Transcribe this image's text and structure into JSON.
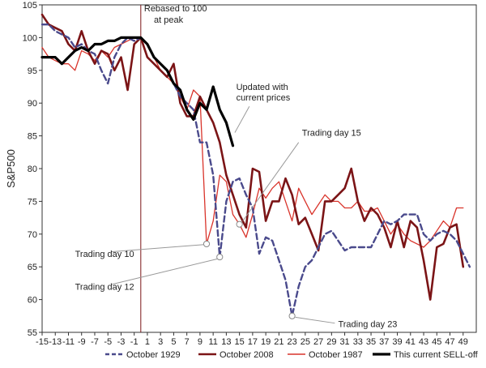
{
  "chart_data": {
    "type": "line",
    "ylabel": "S&P500",
    "xlabel": "",
    "xlim": [
      -15,
      51
    ],
    "ylim": [
      55,
      105
    ],
    "x_ticks": [
      -15,
      -13,
      -11,
      -9,
      -7,
      -5,
      -3,
      -1,
      1,
      3,
      5,
      7,
      9,
      11,
      13,
      15,
      17,
      19,
      21,
      23,
      25,
      27,
      29,
      31,
      33,
      35,
      37,
      39,
      41,
      43,
      45,
      47,
      49
    ],
    "y_ticks": [
      55,
      60,
      65,
      70,
      75,
      80,
      85,
      90,
      95,
      100,
      105
    ],
    "vline_x": 0,
    "series": [
      {
        "name": "October 1929",
        "color": "#4a4a8c",
        "style": "dashed",
        "points": [
          [
            -15,
            102
          ],
          [
            -14,
            102
          ],
          [
            -13,
            101
          ],
          [
            -12,
            100.5
          ],
          [
            -11,
            100
          ],
          [
            -10,
            98.5
          ],
          [
            -9,
            99
          ],
          [
            -8,
            98
          ],
          [
            -7,
            97.5
          ],
          [
            -6,
            95
          ],
          [
            -5,
            93
          ],
          [
            -4,
            97
          ],
          [
            -3,
            99
          ],
          [
            -2,
            100
          ],
          [
            -1,
            99.5
          ],
          [
            0,
            100
          ],
          [
            1,
            99
          ],
          [
            2,
            97
          ],
          [
            3,
            96
          ],
          [
            4,
            95
          ],
          [
            5,
            93
          ],
          [
            6,
            91
          ],
          [
            7,
            90
          ],
          [
            8,
            89
          ],
          [
            9,
            84
          ],
          [
            10,
            84
          ],
          [
            11,
            79
          ],
          [
            12,
            66.5
          ],
          [
            13,
            75
          ],
          [
            14,
            78
          ],
          [
            15,
            78.5
          ],
          [
            16,
            76
          ],
          [
            17,
            74
          ],
          [
            18,
            67
          ],
          [
            19,
            69.5
          ],
          [
            20,
            69
          ],
          [
            21,
            66
          ],
          [
            22,
            63
          ],
          [
            23,
            57.5
          ],
          [
            24,
            62
          ],
          [
            25,
            65
          ],
          [
            26,
            66
          ],
          [
            27,
            68
          ],
          [
            28,
            70
          ],
          [
            29,
            70.5
          ],
          [
            30,
            69
          ],
          [
            31,
            67.5
          ],
          [
            32,
            68
          ],
          [
            33,
            68
          ],
          [
            34,
            68
          ],
          [
            35,
            68
          ],
          [
            36,
            70
          ],
          [
            37,
            72
          ],
          [
            38,
            71.5
          ],
          [
            39,
            72
          ],
          [
            40,
            73
          ],
          [
            41,
            73
          ],
          [
            42,
            73
          ],
          [
            43,
            70
          ],
          [
            44,
            69
          ],
          [
            45,
            70
          ],
          [
            46,
            70.5
          ],
          [
            47,
            70
          ],
          [
            48,
            69
          ],
          [
            49,
            67
          ],
          [
            50,
            65
          ]
        ]
      },
      {
        "name": "October 2008",
        "color": "#7b1416",
        "style": "solid",
        "points": [
          [
            -15,
            103.5
          ],
          [
            -14,
            102
          ],
          [
            -13,
            101.5
          ],
          [
            -12,
            101
          ],
          [
            -11,
            99
          ],
          [
            -10,
            98
          ],
          [
            -9,
            101
          ],
          [
            -8,
            98
          ],
          [
            -7,
            96
          ],
          [
            -6,
            98
          ],
          [
            -5,
            97.5
          ],
          [
            -4,
            95
          ],
          [
            -3,
            97
          ],
          [
            -2,
            92
          ],
          [
            -1,
            99
          ],
          [
            0,
            100
          ],
          [
            1,
            97
          ],
          [
            2,
            96
          ],
          [
            3,
            95
          ],
          [
            4,
            94
          ],
          [
            5,
            96
          ],
          [
            6,
            90
          ],
          [
            7,
            88
          ],
          [
            8,
            88
          ],
          [
            9,
            91
          ],
          [
            10,
            89
          ],
          [
            11,
            87
          ],
          [
            12,
            84
          ],
          [
            13,
            79
          ],
          [
            14,
            76
          ],
          [
            15,
            73
          ],
          [
            16,
            71
          ],
          [
            17,
            80
          ],
          [
            18,
            79.5
          ],
          [
            19,
            72
          ],
          [
            20,
            75
          ],
          [
            21,
            75
          ],
          [
            22,
            78.5
          ],
          [
            23,
            76
          ],
          [
            24,
            71.5
          ],
          [
            25,
            72.5
          ],
          [
            26,
            70
          ],
          [
            27,
            67.5
          ],
          [
            28,
            75
          ],
          [
            29,
            75
          ],
          [
            30,
            76
          ],
          [
            31,
            77
          ],
          [
            32,
            80
          ],
          [
            33,
            75
          ],
          [
            34,
            72
          ],
          [
            35,
            74
          ],
          [
            36,
            73
          ],
          [
            37,
            71
          ],
          [
            38,
            68
          ],
          [
            39,
            72
          ],
          [
            40,
            68
          ],
          [
            41,
            72
          ],
          [
            42,
            71
          ],
          [
            43,
            66
          ],
          [
            44,
            60
          ],
          [
            45,
            68
          ],
          [
            46,
            68.5
          ],
          [
            47,
            71
          ],
          [
            48,
            71.5
          ],
          [
            49,
            65
          ]
        ]
      },
      {
        "name": "October 1987",
        "color": "#d9342b",
        "style": "solid",
        "points": [
          [
            -15,
            98.5
          ],
          [
            -14,
            97
          ],
          [
            -13,
            96.5
          ],
          [
            -12,
            96
          ],
          [
            -11,
            96
          ],
          [
            -10,
            95
          ],
          [
            -9,
            98
          ],
          [
            -8,
            97.5
          ],
          [
            -7,
            96.5
          ],
          [
            -6,
            98
          ],
          [
            -5,
            97
          ],
          [
            -4,
            98.5
          ],
          [
            -3,
            99
          ],
          [
            -2,
            99.5
          ],
          [
            -1,
            100
          ],
          [
            0,
            100
          ],
          [
            1,
            99
          ],
          [
            2,
            97
          ],
          [
            3,
            95
          ],
          [
            4,
            94
          ],
          [
            5,
            93
          ],
          [
            6,
            91
          ],
          [
            7,
            89
          ],
          [
            8,
            92
          ],
          [
            9,
            91
          ],
          [
            10,
            68.5
          ],
          [
            11,
            72
          ],
          [
            12,
            79
          ],
          [
            13,
            78
          ],
          [
            14,
            73
          ],
          [
            15,
            71.5
          ],
          [
            16,
            69.5
          ],
          [
            17,
            73
          ],
          [
            18,
            77
          ],
          [
            19,
            75.5
          ],
          [
            20,
            77
          ],
          [
            21,
            78
          ],
          [
            22,
            75
          ],
          [
            23,
            72
          ],
          [
            24,
            77
          ],
          [
            25,
            75
          ],
          [
            26,
            73
          ],
          [
            27,
            74.5
          ],
          [
            28,
            76
          ],
          [
            29,
            75
          ],
          [
            30,
            75
          ],
          [
            31,
            74
          ],
          [
            32,
            74
          ],
          [
            33,
            75
          ],
          [
            34,
            73.5
          ],
          [
            35,
            73.5
          ],
          [
            36,
            74
          ],
          [
            37,
            72
          ],
          [
            38,
            70
          ],
          [
            39,
            71.5
          ],
          [
            40,
            70
          ],
          [
            41,
            69
          ],
          [
            42,
            68.5
          ],
          [
            43,
            68
          ],
          [
            44,
            69
          ],
          [
            45,
            70.5
          ],
          [
            46,
            72
          ],
          [
            47,
            71
          ],
          [
            48,
            74
          ],
          [
            49,
            74
          ]
        ]
      },
      {
        "name": "This current SELL-off",
        "color": "#000000",
        "style": "bold",
        "points": [
          [
            -15,
            97
          ],
          [
            -14,
            97
          ],
          [
            -13,
            97
          ],
          [
            -12,
            96
          ],
          [
            -11,
            97
          ],
          [
            -10,
            98
          ],
          [
            -9,
            98.5
          ],
          [
            -8,
            98
          ],
          [
            -7,
            99
          ],
          [
            -6,
            99
          ],
          [
            -5,
            99.5
          ],
          [
            -4,
            99.5
          ],
          [
            -3,
            100
          ],
          [
            -2,
            100
          ],
          [
            -1,
            100
          ],
          [
            0,
            100
          ],
          [
            1,
            99
          ],
          [
            2,
            97
          ],
          [
            3,
            96
          ],
          [
            4,
            95
          ],
          [
            5,
            93
          ],
          [
            6,
            92
          ],
          [
            7,
            89
          ],
          [
            8,
            87.5
          ],
          [
            9,
            90
          ],
          [
            10,
            89
          ],
          [
            11,
            92.5
          ],
          [
            12,
            89
          ],
          [
            13,
            87
          ],
          [
            14,
            83.5
          ]
        ]
      }
    ],
    "annotations": [
      {
        "text": "Rebased to 100",
        "x": 0.5,
        "y": 104
      },
      {
        "text": "at peak",
        "x": 2,
        "y": 102.3
      },
      {
        "text": "Updated with",
        "x": 14.5,
        "y": 92
      },
      {
        "text": "current prices",
        "x": 14.5,
        "y": 90.4
      },
      {
        "text": "Trading day 15",
        "x": 24.5,
        "y": 85
      },
      {
        "text": "Trading day 10",
        "x": -10,
        "y": 66.5
      },
      {
        "text": "Trading day 12",
        "x": -10,
        "y": 61.5
      },
      {
        "text": "Trading day 23",
        "x": 30,
        "y": 55.8
      }
    ],
    "markers": [
      {
        "label": "Trading day 10",
        "x": 10,
        "y": 68.5
      },
      {
        "label": "Trading day 12",
        "x": 12,
        "y": 66.5
      },
      {
        "label": "Trading day 15",
        "x": 15,
        "y": 71.5
      },
      {
        "label": "Trading day 23",
        "x": 23,
        "y": 57.5
      }
    ],
    "legend_position": "bottom",
    "grid": false
  }
}
